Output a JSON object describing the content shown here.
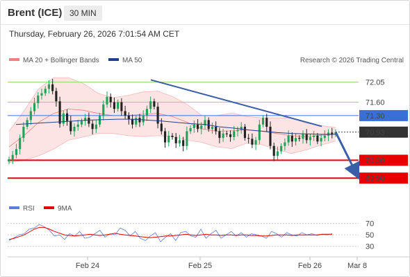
{
  "header": {
    "title": "Brent (ICE)",
    "timeframe": "30 MIN",
    "timestamp": "Thursday, February 26, 2026 7:01:54 AM CET"
  },
  "legend": {
    "bollinger_label": "MA 20 + Bollinger Bands",
    "ma50_label": "MA 50",
    "rsi_label": "RSI",
    "rsi_ma_label": "9MA",
    "copyright": "Research © 2026 Trading Central"
  },
  "colors": {
    "bollinger": "#f08080",
    "bollinger_fill": "#fde4e4",
    "ma50": "#1f3f8f",
    "resistance_green": "#9acd7a",
    "support_red": "#e60000",
    "level_blue": "#3a6fd8",
    "current_price": "#333333",
    "trendline": "#3a5fa8",
    "rsi": "#5b7fd6",
    "rsi_ma": "#e60000"
  },
  "chart_data": {
    "type": "candlestick",
    "instrument": "Brent (ICE)",
    "timeframe": "30 MIN",
    "x_ticks": [
      "Feb 24",
      "Feb 25",
      "Feb 26",
      "Mar 8"
    ],
    "y_ticks": [
      72.05,
      71.6,
      71.3,
      70.93,
      70.3,
      69.9
    ],
    "ylim": [
      69.5,
      72.4
    ],
    "levels": [
      {
        "label": "72.05",
        "value": 72.05,
        "kind": "resistance"
      },
      {
        "label": "71.60",
        "value": 71.6,
        "kind": "resistance"
      },
      {
        "label": "71.30",
        "value": 71.3,
        "kind": "pivot"
      },
      {
        "label": "70.93",
        "value": 70.93,
        "kind": "last"
      },
      {
        "label": "70.30",
        "value": 70.3,
        "kind": "support"
      },
      {
        "label": "69.90",
        "value": 69.9,
        "kind": "support"
      }
    ],
    "closes": [
      70.32,
      70.42,
      70.55,
      70.8,
      71.05,
      71.2,
      71.4,
      71.58,
      71.75,
      71.8,
      71.9,
      72.0,
      71.85,
      71.62,
      71.12,
      71.35,
      71.18,
      70.95,
      71.05,
      71.1,
      71.18,
      71.25,
      71.12,
      71.0,
      71.1,
      71.3,
      71.55,
      71.72,
      71.6,
      71.45,
      71.6,
      71.4,
      71.3,
      71.22,
      71.1,
      71.25,
      71.15,
      71.3,
      71.45,
      71.62,
      71.5,
      71.12,
      70.95,
      70.7,
      70.85,
      70.82,
      70.68,
      70.75,
      70.62,
      70.95,
      71.02,
      71.1,
      71.0,
      71.08,
      71.2,
      71.0,
      71.05,
      70.95,
      70.8,
      70.9,
      70.88,
      70.82,
      70.95,
      70.98,
      71.05,
      70.8,
      70.78,
      70.65,
      70.75,
      71.1,
      71.25,
      71.05,
      70.62,
      70.4,
      70.5,
      70.62,
      70.7,
      70.85,
      70.72,
      70.8,
      70.78,
      70.88,
      70.75,
      70.82,
      70.85,
      70.72,
      70.8,
      70.85,
      70.92,
      70.88,
      70.93
    ],
    "ma50": [
      71.1,
      71.12,
      71.14,
      71.16,
      71.18,
      71.2,
      71.21,
      71.22,
      71.22,
      71.2,
      71.18,
      71.15,
      71.12,
      71.1,
      71.05,
      71.02,
      70.98,
      70.95,
      70.92,
      70.9,
      70.89,
      70.88,
      70.88
    ],
    "bollinger_mid": [
      70.6,
      70.85,
      71.15,
      71.35,
      71.45,
      71.42,
      71.35,
      71.3,
      71.3,
      71.33,
      71.35,
      71.28,
      71.15,
      71.0,
      70.95,
      70.96,
      70.98,
      70.95,
      70.9,
      70.85,
      70.83,
      70.86,
      70.88
    ],
    "bollinger_width": [
      0.35,
      0.55,
      0.75,
      0.8,
      0.7,
      0.6,
      0.45,
      0.4,
      0.45,
      0.5,
      0.5,
      0.45,
      0.4,
      0.3,
      0.35,
      0.4,
      0.3,
      0.3,
      0.35,
      0.4,
      0.3,
      0.22,
      0.15
    ],
    "trendline": [
      {
        "from": 72.1,
        "to": 71.06
      }
    ],
    "forecast_arrow": {
      "from": 70.93,
      "to": 69.9
    },
    "rsi_ticks": [
      70,
      50,
      30
    ],
    "rsi_ylim": [
      20,
      78
    ],
    "rsi": [
      40,
      45,
      50,
      52,
      60,
      62,
      68,
      64,
      58,
      48,
      50,
      42,
      52,
      48,
      56,
      44,
      46,
      52,
      58,
      46,
      52,
      50,
      62,
      58,
      48,
      56,
      44,
      40,
      48,
      54,
      38,
      46,
      52,
      40,
      54,
      56,
      48,
      46,
      60,
      44,
      52,
      58,
      44,
      50,
      56,
      48,
      54,
      46,
      52,
      50,
      48,
      44,
      56,
      52,
      46,
      54,
      50,
      48,
      54,
      50,
      52,
      49,
      51,
      50,
      52
    ],
    "rsi_ma": [
      42,
      44,
      47,
      50,
      55,
      60,
      63,
      63,
      60,
      56,
      53,
      50,
      49,
      48,
      49,
      50,
      51,
      50,
      49,
      50,
      51,
      53,
      51,
      50,
      49,
      48,
      47,
      46,
      45,
      46,
      47,
      48,
      48,
      49,
      50,
      51,
      50,
      49,
      50,
      51,
      50,
      50,
      49,
      50,
      50,
      49,
      50,
      50,
      49,
      49,
      48,
      48,
      49,
      50,
      50,
      50,
      49,
      50,
      50,
      50,
      50,
      50,
      51,
      51,
      51
    ]
  }
}
